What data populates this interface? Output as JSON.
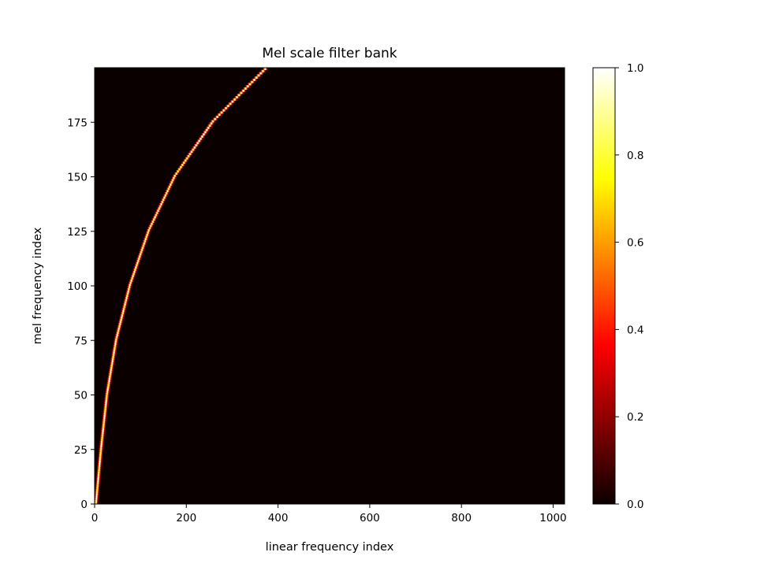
{
  "chart_data": {
    "type": "heatmap",
    "title": "Mel scale filter bank",
    "xlabel": "linear frequency index",
    "ylabel": "mel frequency index",
    "xlim": [
      0,
      1025
    ],
    "ylim": [
      0,
      200
    ],
    "x_ticks": [
      0,
      200,
      400,
      600,
      800,
      1000
    ],
    "y_ticks": [
      0,
      25,
      50,
      75,
      100,
      125,
      150,
      175
    ],
    "colormap": "hot",
    "colorbar": {
      "min": 0.0,
      "max": 1.0,
      "ticks": [
        "0.0",
        "0.2",
        "0.4",
        "0.6",
        "0.8",
        "1.0"
      ]
    },
    "filter_peak_curve": {
      "description": "Each mel filter row peaks near this linear index",
      "points": [
        {
          "mel": 0,
          "linear": 3
        },
        {
          "mel": 25,
          "linear": 14
        },
        {
          "mel": 50,
          "linear": 27
        },
        {
          "mel": 75,
          "linear": 47
        },
        {
          "mel": 100,
          "linear": 77
        },
        {
          "mel": 125,
          "linear": 118
        },
        {
          "mel": 150,
          "linear": 175
        },
        {
          "mel": 175,
          "linear": 258
        },
        {
          "mel": 199,
          "linear": 372
        }
      ],
      "peak_value": 1.0,
      "background_value": 0.0
    }
  }
}
